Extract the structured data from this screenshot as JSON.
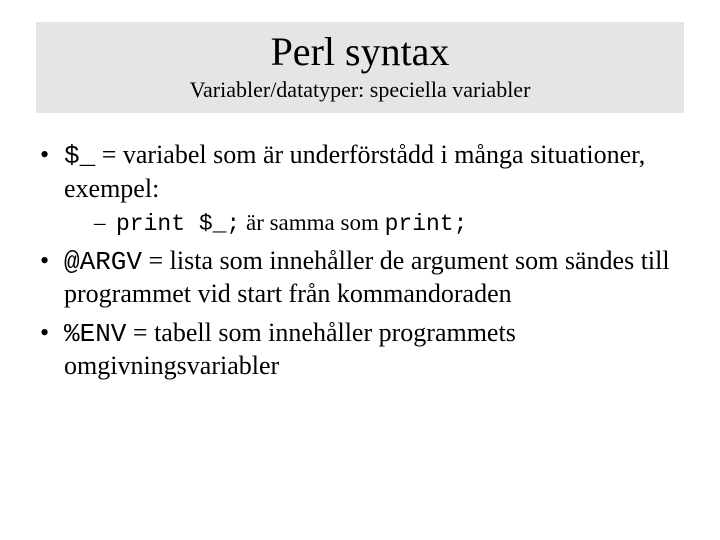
{
  "colors": {
    "background": "#ffffff",
    "title_block_bg": "#e5e5e5",
    "text": "#000000"
  },
  "typography": {
    "title_fontsize": 40,
    "subtitle_fontsize": 22,
    "body_fontsize": 26,
    "sub_fontsize": 23,
    "serif_family": "Times New Roman",
    "mono_family": "Courier New"
  },
  "header": {
    "title": "Perl syntax",
    "subtitle": "Variabler/datatyper: speciella variabler"
  },
  "bullets": {
    "b1": {
      "code": "$_",
      "rest": " = variabel som är underförstådd i många situationer, exempel:",
      "sub": {
        "code1": "print $_;",
        "mid": " är samma som ",
        "code2": "print;"
      }
    },
    "b2": {
      "code": "@ARGV",
      "rest": " = lista som innehåller de argument som sändes till programmet vid start från kommandoraden"
    },
    "b3": {
      "code": "%ENV",
      "rest": " = tabell som innehåller programmets omgivningsvariabler"
    }
  }
}
